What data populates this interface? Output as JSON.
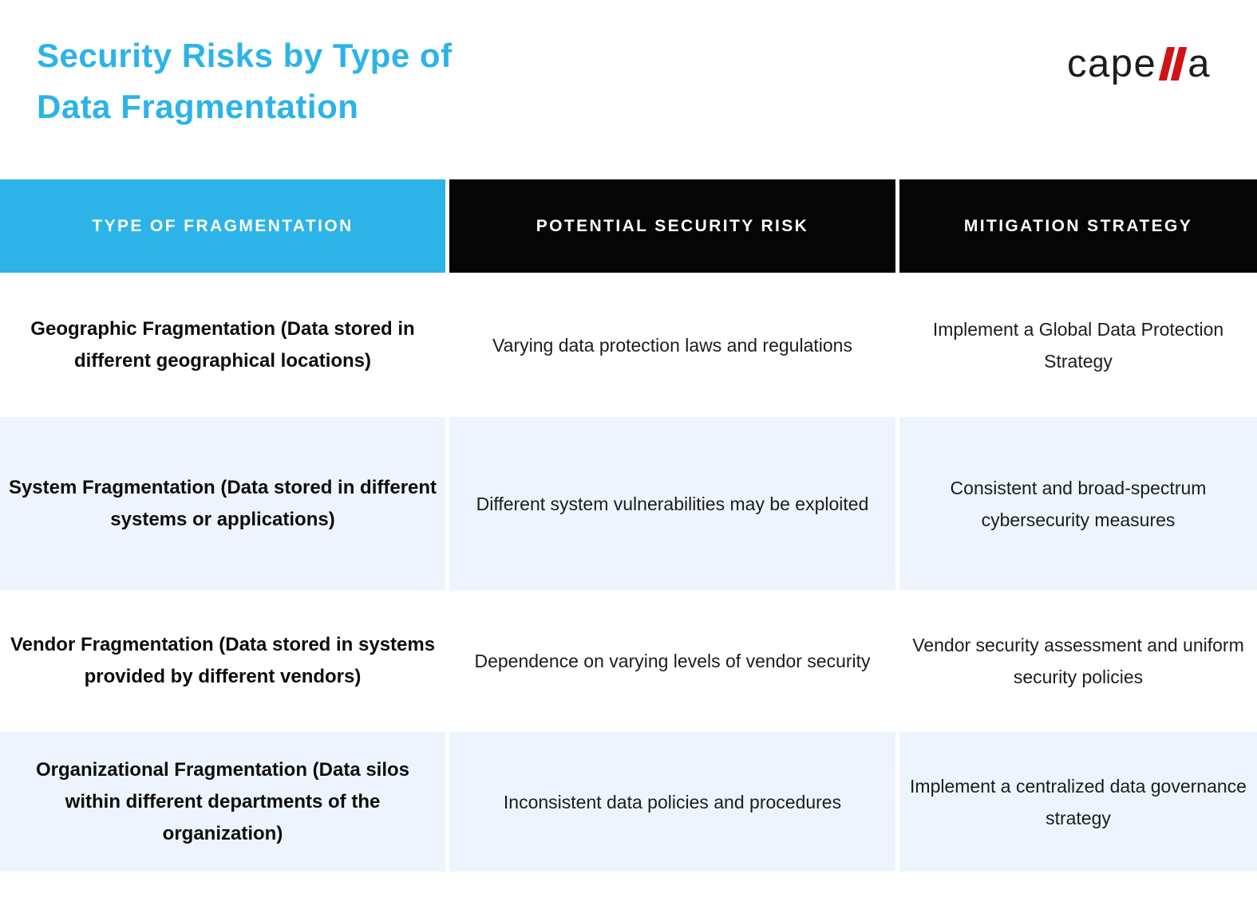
{
  "page": {
    "title": "Security Risks by Type of\nData Fragmentation",
    "title_color": "#2cb3e8"
  },
  "logo": {
    "name": "capella",
    "prefix": "cape",
    "suffix": "a",
    "text_color": "#1c1c1c",
    "slash_color": "#cf1317"
  },
  "table": {
    "header_colors": {
      "type": "#2cb3e8",
      "risk": "#050505",
      "mitigation": "#050505"
    },
    "row_alt_color": "#edf4fd",
    "headers": {
      "type": "TYPE OF FRAGMENTATION",
      "risk": "POTENTIAL SECURITY RISK",
      "mitigation": "MITIGATION STRATEGY"
    },
    "rows": [
      {
        "type": "Geographic Fragmentation (Data stored in different geographical locations)",
        "risk": "Varying data protection laws and regulations",
        "mitigation": "Implement a Global Data Protection Strategy"
      },
      {
        "type": "System Fragmentation (Data stored in different systems or applications)",
        "risk": "Different system vulnerabilities may be exploited",
        "mitigation": "Consistent and broad-spectrum cybersecurity measures"
      },
      {
        "type": "Vendor Fragmentation (Data stored in systems provided by different vendors)",
        "risk": "Dependence on varying levels of vendor security",
        "mitigation": "Vendor security assessment and uniform security policies"
      },
      {
        "type": "Organizational Fragmentation (Data silos within different departments of the organization)",
        "risk": "Inconsistent data policies and procedures",
        "mitigation": "Implement a centralized data governance strategy"
      }
    ]
  }
}
